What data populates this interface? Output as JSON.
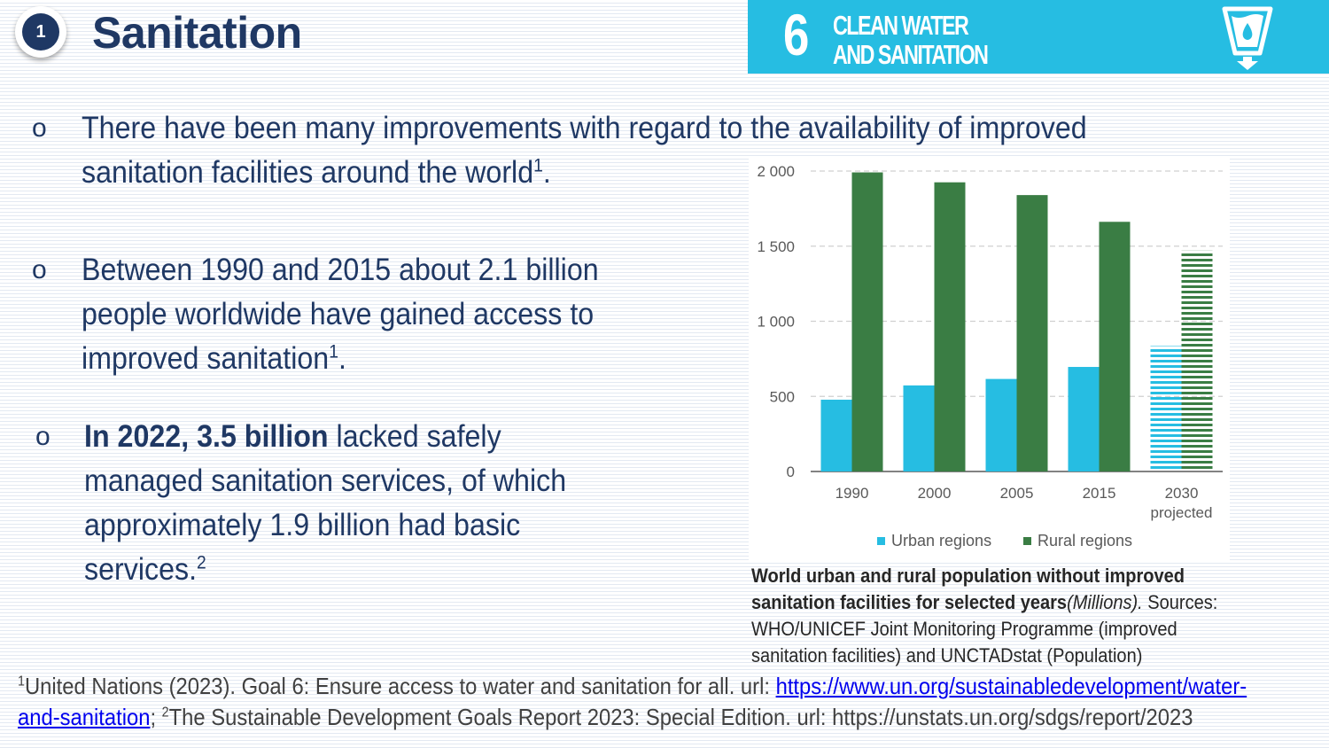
{
  "header": {
    "badge_number": "1",
    "title": "Sanitation",
    "sdg": {
      "number": "6",
      "line1": "CLEAN WATER",
      "line2": "AND SANITATION",
      "icon": "water-glass-icon",
      "color": "#26bde2"
    }
  },
  "bullets": [
    {
      "mark": "o",
      "line1": "There have been many improvements with regard to the availability of improved",
      "line2": "sanitation facilities around the world",
      "sup": "1",
      "end": "."
    },
    {
      "mark": "o",
      "line1": "Between 1990 and 2015 about 2.1 billion",
      "line2": "people worldwide have gained access to",
      "line3": "improved sanitation",
      "sup": "1",
      "end": "."
    },
    {
      "mark": "o",
      "bold": "In 2022, 3.5 billion",
      "line1_rest": " lacked safely",
      "line2": "managed sanitation services, of which",
      "line3": "approximately 1.9 billion had basic",
      "line4": "services.",
      "sup": "2"
    }
  ],
  "chart_data": {
    "type": "bar",
    "categories": [
      "1990",
      "2000",
      "2005",
      "2015",
      "2030"
    ],
    "category_sublabels": [
      "",
      "",
      "",
      "",
      "projected"
    ],
    "series": [
      {
        "name": "Urban regions",
        "values": [
          478,
          573,
          616,
          696,
          835
        ],
        "color": "#26bde2"
      },
      {
        "name": "Rural regions",
        "values": [
          1991,
          1925,
          1840,
          1662,
          1470
        ],
        "color": "#3a7d44"
      }
    ],
    "projected_pattern": "horizontal-stripes",
    "y_ticks": [
      "2 000",
      "1 500",
      "1 000",
      "500",
      "0"
    ],
    "ylim": [
      0,
      2000
    ],
    "grid": "dashed-horizontal",
    "legend": "bottom-center"
  },
  "caption": {
    "bold": "World urban and rural population without improved sanitation facilities for selected years",
    "italic": "(Millions).",
    "rest": " Sources: WHO/UNICEF Joint Monitoring Programme (improved sanitation facilities) and UNCTADstat (Population)"
  },
  "footnote": {
    "sup1": "1",
    "text1": "United Nations (2023). Goal 6: Ensure access to water and sanitation for all. url: ",
    "link": "https://www.un.org/sustainabledevelopment/water-and-sanitation",
    "sep": "; ",
    "sup2": "2",
    "text2": "The Sustainable Development Goals Report 2023: Special Edition. url: https://unstats.un.org/sdgs/report/2023"
  }
}
